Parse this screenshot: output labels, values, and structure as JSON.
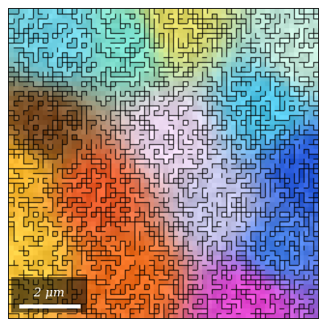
{
  "scale_bar": {
    "label": "2 μm",
    "color": "#ffffff"
  },
  "colors": {
    "boundary": "#000000",
    "background": "#ffffff",
    "orientation_palette": [
      "#f2f2f2",
      "#6e4d2d",
      "#f9a640",
      "#e53a2d",
      "#4fc7e6",
      "#1e6fe6",
      "#e54ad6",
      "#8ee6b7",
      "#eadcf0"
    ]
  }
}
